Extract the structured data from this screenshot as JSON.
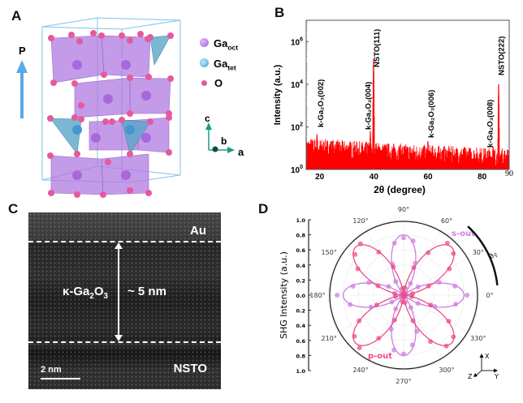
{
  "panel_labels": {
    "a": "A",
    "b": "B",
    "c": "C",
    "d": "D"
  },
  "panel_a": {
    "polarization_label": "P",
    "legend": [
      {
        "base": "Ga",
        "sub": "oct",
        "color": "#b36ee0"
      },
      {
        "base": "Ga",
        "sub": "tet",
        "color": "#4fa9d8"
      },
      {
        "base": "O",
        "sub": "",
        "color": "#e45a9c"
      }
    ],
    "axes": {
      "c": "c",
      "b": "b",
      "a": "a"
    },
    "colors": {
      "octahedra": "#b07ae0",
      "tetrahedra": "#5aa6c8",
      "oxygen": "#e45a9c",
      "cell": "#7ec3e6",
      "arrow": "#5aa9e6"
    }
  },
  "panel_c": {
    "top_layer": "Au",
    "film_label": {
      "pre": "κ-Ga",
      "s1": "2",
      "mid": "O",
      "s2": "3"
    },
    "thickness": "~ 5 nm",
    "bottom_layer": "NSTO",
    "scale_bar": "2 nm"
  },
  "chart_data": [
    {
      "type": "line",
      "xlabel": "2θ (degree)",
      "ylabel": "Intensity (a.u.)",
      "xlim": [
        15,
        90
      ],
      "ylim": [
        1,
        10000000
      ],
      "yscale": "log",
      "x_ticks": [
        "20",
        "40",
        "60",
        "80",
        "90"
      ],
      "x_tick_values": [
        20,
        40,
        60,
        80,
        90
      ],
      "y_ticks": [
        {
          "base": "10",
          "exp": "0"
        },
        {
          "base": "10",
          "exp": "2"
        },
        {
          "base": "10",
          "exp": "4"
        },
        {
          "base": "10",
          "exp": "6"
        }
      ],
      "y_tick_values": [
        1,
        100,
        10000,
        1000000
      ],
      "color": "#ff0000",
      "peaks": [
        {
          "x": 19.0,
          "y": 40
        },
        {
          "x": 38.7,
          "y": 60
        },
        {
          "x": 39.9,
          "y": 150000
        },
        {
          "x": 60.0,
          "y": 20
        },
        {
          "x": 84.0,
          "y": 12
        },
        {
          "x": 86.1,
          "y": 10000
        }
      ],
      "peak_labels": [
        {
          "text": "k-Ga₂O₃(002)",
          "x": 19.0
        },
        {
          "text": "k-Ga₂O₃(004)",
          "x": 38.7
        },
        {
          "text": "NSTO(111)",
          "x": 39.9
        },
        {
          "text": "k-Ga₂O₃(006)",
          "x": 60.0
        },
        {
          "text": "k-Ga₂O₃(008)",
          "x": 84.0
        },
        {
          "text": "NSTO(222)",
          "x": 86.1
        }
      ],
      "background_level": "≈15 at 15°, decreasing to ≈5 at 90°",
      "grid": false
    },
    {
      "type": "polar-scatter",
      "ylabel": "SHG Intensity (a.u.)",
      "radial_ticks": [
        "1.0",
        "0.8",
        "0.6",
        "0.4",
        "0.2",
        "0.0",
        "0.2",
        "0.4",
        "0.6",
        "0.8",
        "1.0"
      ],
      "rlim": [
        0,
        1.0
      ],
      "angle_ticks": [
        "0°",
        "30°",
        "60°",
        "90°",
        "120°",
        "150°",
        "180°",
        "210°",
        "240°",
        "270°",
        "300°",
        "330°"
      ],
      "angle_label": "θp",
      "triad": {
        "x": "X",
        "y": "Y",
        "z": "Z"
      },
      "angles_deg": [
        0,
        10,
        20,
        30,
        40,
        50,
        60,
        70,
        80,
        90,
        100,
        110,
        120,
        130,
        140,
        150,
        160,
        170,
        180,
        190,
        200,
        210,
        220,
        230,
        240,
        250,
        260,
        270,
        280,
        290,
        300,
        310,
        320,
        330,
        340,
        350
      ],
      "series": [
        {
          "name": "s-out",
          "color": "#cc7fe0",
          "values": [
            0.84,
            0.69,
            0.5,
            0.22,
            0.03,
            0.04,
            0.18,
            0.45,
            0.73,
            0.76,
            0.7,
            0.44,
            0.21,
            0.02,
            0.03,
            0.23,
            0.49,
            0.68,
            0.88,
            0.72,
            0.46,
            0.18,
            0.04,
            0.02,
            0.21,
            0.48,
            0.74,
            0.78,
            0.67,
            0.51,
            0.19,
            0.03,
            0.02,
            0.22,
            0.44,
            0.7
          ]
        },
        {
          "name": "p-out",
          "color": "#ea4f86",
          "values": [
            0.02,
            0.12,
            0.35,
            0.7,
            0.86,
            0.9,
            0.65,
            0.39,
            0.1,
            0.03,
            0.09,
            0.4,
            0.66,
            0.89,
            0.84,
            0.7,
            0.36,
            0.12,
            0.01,
            0.11,
            0.38,
            0.68,
            0.85,
            0.91,
            0.66,
            0.35,
            0.09,
            0.02,
            0.1,
            0.36,
            0.71,
            0.88,
            0.86,
            0.69,
            0.38,
            0.11
          ]
        }
      ]
    }
  ]
}
